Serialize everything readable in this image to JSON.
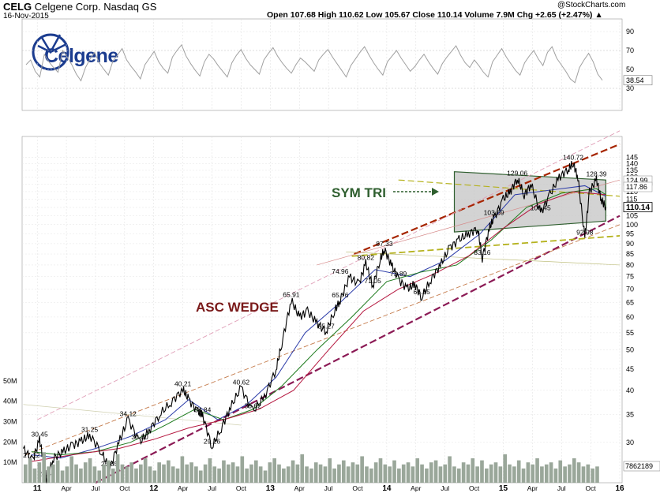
{
  "header": {
    "symbol": "CELG",
    "company": "Celgene Corp. Nasdaq GS",
    "date": "16-Nov-2015",
    "quote": "Open 107.68  High 110.62  Low 105.67  Close 110.14  Volume 7.9M  Chg +2.65 (+2.47%) ▲",
    "credit": "@StockCharts.com",
    "logo_text": "Celgene",
    "logo_icon": "celgene-globe-icon"
  },
  "colors": {
    "price": "#000000",
    "ma_short": "#2a3aa8",
    "ma_mid": "#1c7a1c",
    "ma_long": "#b5173f",
    "trendline_dark_red": "#a62500",
    "trendline_purple": "#8b1a55",
    "trendline_olive": "#b5b21e",
    "sym_tri_text": "#2e5e2e",
    "asc_wedge_text": "#7a1a1a",
    "triangle_fill": "#c8c8c8",
    "volume": "#9aa79a",
    "rsi": "#a0a0a0"
  },
  "chart_data": [
    {
      "type": "line",
      "panel": "rsi",
      "y_ticks": [
        30,
        50,
        70,
        90
      ],
      "ylim": [
        10,
        100
      ],
      "last_value_label": "38.54",
      "values": [
        55,
        60,
        48,
        42,
        66,
        58,
        52,
        47,
        70,
        63,
        55,
        45,
        38,
        52,
        61,
        68,
        57,
        50,
        44,
        59,
        65,
        72,
        60,
        53,
        47,
        40,
        55,
        62,
        69,
        58,
        51,
        46,
        63,
        70,
        76,
        64,
        56,
        49,
        43,
        58,
        66,
        61,
        54,
        48,
        42,
        57,
        65,
        71,
        62,
        55,
        50,
        45,
        60,
        67,
        73,
        64,
        57,
        51,
        46,
        55,
        62,
        58,
        53,
        48,
        60,
        66,
        71,
        63,
        56,
        49,
        42,
        54,
        61,
        68,
        74,
        65,
        57,
        50,
        44,
        58,
        64,
        70,
        62,
        55,
        48,
        53,
        60,
        66,
        58,
        51,
        45,
        56,
        63,
        69,
        75,
        65,
        57,
        52,
        60,
        54,
        47,
        42,
        58,
        65,
        72,
        63,
        56,
        49,
        44,
        57,
        64,
        70,
        61,
        54,
        68,
        74,
        62,
        55,
        48,
        40,
        36,
        52,
        60,
        67,
        58,
        45,
        38.54
      ]
    },
    {
      "type": "line",
      "panel": "price",
      "scale": "log",
      "ylim": [
        24,
        160
      ],
      "y_ticks": [
        30,
        35,
        40,
        45,
        50,
        55,
        60,
        65,
        70,
        75,
        80,
        85,
        90,
        95,
        100,
        105,
        110,
        115,
        120,
        125,
        130,
        135,
        140,
        145
      ],
      "x_ticks": [
        "11",
        "Apr",
        "Jul",
        "Oct",
        "12",
        "Apr",
        "Jul",
        "Oct",
        "13",
        "Apr",
        "Jul",
        "Oct",
        "14",
        "Apr",
        "Jul",
        "Oct",
        "15",
        "Apr",
        "Jul",
        "Oct",
        "16"
      ],
      "last_price_label": "110.14",
      "ma_value_labels": [
        "124.99",
        "117.86"
      ],
      "annotations_text": [
        "SYM TRI",
        "ASC WEDGE"
      ],
      "labeled_points": [
        {
          "label": "30.45",
          "x": 2011.02,
          "y": 30.45
        },
        {
          "label": "27.12",
          "x": 2010.95,
          "y": 27.12
        },
        {
          "label": "24.46",
          "x": 2011.08,
          "y": 24.46
        },
        {
          "label": "31.25",
          "x": 2011.45,
          "y": 31.25
        },
        {
          "label": "25.85",
          "x": 2011.62,
          "y": 25.85
        },
        {
          "label": "34.12",
          "x": 2011.78,
          "y": 34.12
        },
        {
          "label": "30.00",
          "x": 2011.88,
          "y": 30.0
        },
        {
          "label": "40.21",
          "x": 2012.25,
          "y": 40.21
        },
        {
          "label": "34.84",
          "x": 2012.42,
          "y": 34.84
        },
        {
          "label": "29.26",
          "x": 2012.5,
          "y": 29.26
        },
        {
          "label": "40.62",
          "x": 2012.75,
          "y": 40.62
        },
        {
          "label": "35.62",
          "x": 2012.85,
          "y": 35.62
        },
        {
          "label": "65.91",
          "x": 2013.18,
          "y": 65.91
        },
        {
          "label": "55.27",
          "x": 2013.48,
          "y": 55.27
        },
        {
          "label": "65.76",
          "x": 2013.6,
          "y": 65.76
        },
        {
          "label": "74.96",
          "x": 2013.6,
          "y": 74.96
        },
        {
          "label": "80.82",
          "x": 2013.82,
          "y": 80.82
        },
        {
          "label": "71.05",
          "x": 2013.88,
          "y": 71.05
        },
        {
          "label": "87.33",
          "x": 2013.98,
          "y": 87.33
        },
        {
          "label": "73.89",
          "x": 2014.1,
          "y": 73.89
        },
        {
          "label": "66.85",
          "x": 2014.3,
          "y": 66.85
        },
        {
          "label": "83.16",
          "x": 2014.82,
          "y": 83.16
        },
        {
          "label": "103.69",
          "x": 2014.92,
          "y": 103.69
        },
        {
          "label": "129.06",
          "x": 2015.12,
          "y": 129.06
        },
        {
          "label": "106.45",
          "x": 2015.32,
          "y": 106.45
        },
        {
          "label": "140.72",
          "x": 2015.6,
          "y": 140.72
        },
        {
          "label": "92.98",
          "x": 2015.7,
          "y": 92.98
        },
        {
          "label": "128.39",
          "x": 2015.8,
          "y": 128.39
        }
      ],
      "series": [
        {
          "role": "price",
          "x": [
            2010.88,
            2010.96,
            2011.02,
            2011.06,
            2011.08,
            2011.14,
            2011.22,
            2011.3,
            2011.38,
            2011.45,
            2011.55,
            2011.62,
            2011.7,
            2011.78,
            2011.88,
            2011.96,
            2012.05,
            2012.15,
            2012.25,
            2012.3,
            2012.38,
            2012.42,
            2012.5,
            2012.58,
            2012.66,
            2012.75,
            2012.85,
            2012.95,
            2013.05,
            2013.1,
            2013.18,
            2013.25,
            2013.32,
            2013.4,
            2013.48,
            2013.55,
            2013.6,
            2013.68,
            2013.76,
            2013.82,
            2013.88,
            2013.94,
            2013.98,
            2014.04,
            2014.1,
            2014.18,
            2014.24,
            2014.3,
            2014.38,
            2014.46,
            2014.54,
            2014.62,
            2014.7,
            2014.78,
            2014.82,
            2014.88,
            2014.92,
            2015.0,
            2015.06,
            2015.12,
            2015.18,
            2015.24,
            2015.32,
            2015.4,
            2015.48,
            2015.56,
            2015.6,
            2015.64,
            2015.7,
            2015.74,
            2015.8,
            2015.84,
            2015.88
          ],
          "y": [
            29,
            27.12,
            30.45,
            26.5,
            24.46,
            27.5,
            28.5,
            29.5,
            30.2,
            31.25,
            28.5,
            25.85,
            30,
            34.12,
            30,
            32,
            35,
            37.5,
            40.21,
            38,
            35.5,
            34.84,
            29.26,
            32.5,
            36.5,
            40.62,
            35.62,
            38.5,
            45,
            52,
            65.91,
            60,
            62,
            58,
            55.27,
            62,
            65.76,
            74.96,
            72,
            80.82,
            71.05,
            82,
            87.33,
            80,
            73.89,
            70,
            72,
            66.85,
            74,
            80,
            88,
            92,
            95,
            98,
            83.16,
            98,
            103.69,
            115,
            120,
            129.06,
            118,
            125,
            106.45,
            118,
            130,
            136,
            140.72,
            130,
            92.98,
            120,
            128.39,
            115,
            110.14
          ]
        },
        {
          "role": "ma_short",
          "x": [
            2010.95,
            2011.2,
            2011.5,
            2011.8,
            2012.1,
            2012.3,
            2012.55,
            2012.8,
            2013.05,
            2013.3,
            2013.6,
            2013.9,
            2014.2,
            2014.5,
            2014.8,
            2015.1,
            2015.4,
            2015.7,
            2015.88
          ],
          "y": [
            28,
            27.5,
            29,
            31,
            34,
            38,
            34,
            37,
            43,
            55,
            65,
            78,
            75,
            82,
            95,
            118,
            121,
            124,
            117
          ]
        },
        {
          "role": "ma_mid",
          "x": [
            2010.95,
            2011.2,
            2011.5,
            2011.8,
            2012.1,
            2012.35,
            2012.6,
            2012.85,
            2013.1,
            2013.4,
            2013.7,
            2014.0,
            2014.3,
            2014.6,
            2014.9,
            2015.2,
            2015.5,
            2015.8,
            2015.88
          ],
          "y": [
            28.5,
            28,
            28.5,
            30,
            33,
            36,
            34,
            36,
            41,
            50,
            60,
            73,
            77,
            80,
            92,
            110,
            119,
            122,
            118
          ]
        },
        {
          "role": "ma_long",
          "x": [
            2010.95,
            2011.3,
            2011.7,
            2012.0,
            2012.3,
            2012.6,
            2012.9,
            2013.2,
            2013.5,
            2013.8,
            2014.1,
            2014.4,
            2014.7,
            2015.0,
            2015.3,
            2015.6,
            2015.88
          ],
          "y": [
            27,
            28,
            29,
            30.5,
            32.5,
            34,
            36,
            40,
            50,
            62,
            70,
            76,
            84,
            98,
            112,
            120,
            118
          ]
        }
      ]
    },
    {
      "type": "bar",
      "panel": "volume",
      "y_ticks_labels": [
        "10M",
        "20M",
        "30M",
        "40M",
        "50M"
      ],
      "ylim": [
        0,
        55
      ],
      "last_value_label": "7862189",
      "values": [
        9,
        12,
        7,
        10,
        15,
        8,
        9,
        11,
        6,
        8,
        13,
        9,
        7,
        10,
        12,
        8,
        6,
        9,
        11,
        7,
        14,
        9,
        8,
        10,
        7,
        9,
        12,
        8,
        6,
        10,
        9,
        11,
        8,
        7,
        13,
        9,
        10,
        8,
        6,
        9,
        12,
        8,
        7,
        11,
        9,
        10,
        8,
        13,
        7,
        9,
        11,
        8,
        6,
        10,
        12,
        9,
        7,
        8,
        11,
        9,
        14,
        8,
        7,
        10,
        9,
        8,
        12,
        7,
        9,
        11,
        8,
        10,
        9,
        13,
        8,
        7,
        10,
        12,
        9,
        8,
        11,
        7,
        9,
        10,
        8,
        12,
        9,
        7,
        10,
        11,
        8,
        9,
        13,
        8,
        7,
        10,
        9,
        12,
        8,
        11,
        7,
        9,
        10,
        8,
        14,
        9,
        8,
        11,
        7,
        10,
        9,
        12,
        8,
        9,
        10,
        7,
        11,
        8,
        9,
        12,
        10,
        8,
        9,
        7,
        8
      ]
    }
  ]
}
